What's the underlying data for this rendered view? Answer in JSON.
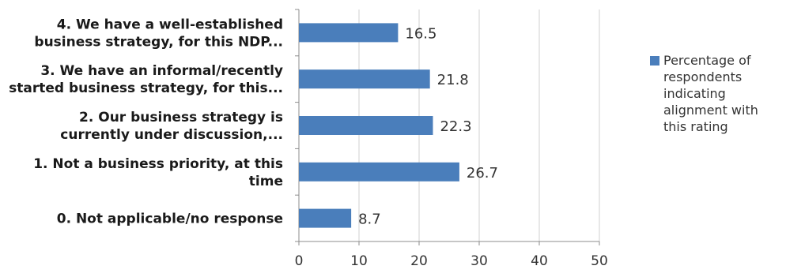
{
  "chart_data": {
    "type": "bar",
    "orientation": "horizontal",
    "categories": [
      [
        "4. We have a well-established",
        "business strategy, for this NDP..."
      ],
      [
        "3. We have an informal/recently",
        "started business strategy, for this..."
      ],
      [
        "2. Our business strategy is",
        "currently under discussion,..."
      ],
      [
        "1. Not a business priority, at this",
        "time"
      ],
      [
        "0. Not applicable/no response"
      ]
    ],
    "series": [
      {
        "name": "Percentage of respondents indicating alignment with this rating",
        "values": [
          16.5,
          21.8,
          22.3,
          26.7,
          8.7
        ],
        "color": "#4a7ebb"
      }
    ],
    "x_ticks": [
      0,
      10,
      20,
      30,
      40,
      50
    ],
    "xlim": [
      0,
      50
    ],
    "grid": true,
    "legend_position": "right"
  }
}
